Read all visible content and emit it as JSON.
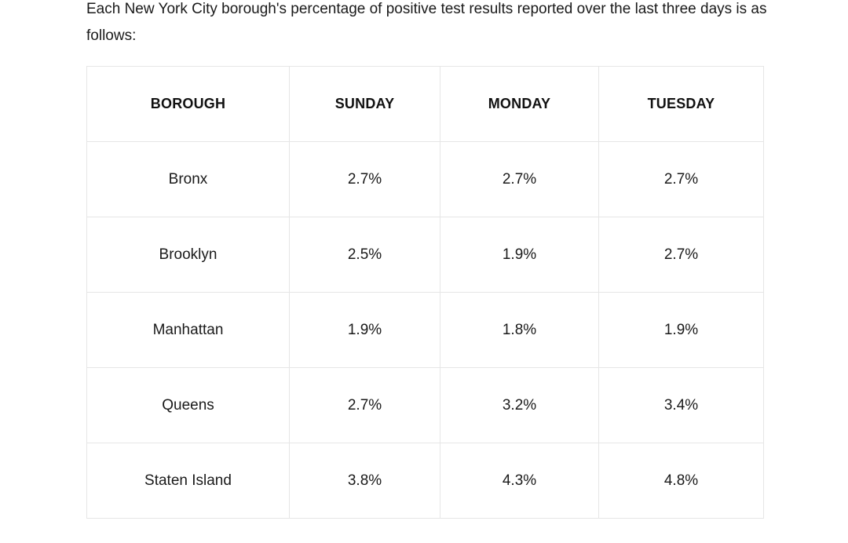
{
  "intro_text": "Each New York City borough's percentage of positive test results reported over the last three days is as follows:",
  "table": {
    "headers": [
      "BOROUGH",
      "SUNDAY",
      "MONDAY",
      "TUESDAY"
    ],
    "rows": [
      [
        "Bronx",
        "2.7%",
        "2.7%",
        "2.7%"
      ],
      [
        "Brooklyn",
        "2.5%",
        "1.9%",
        "2.7%"
      ],
      [
        "Manhattan",
        "1.9%",
        "1.8%",
        "1.9%"
      ],
      [
        "Queens",
        "2.7%",
        "3.2%",
        "3.4%"
      ],
      [
        "Staten Island",
        "3.8%",
        "4.3%",
        "4.8%"
      ]
    ]
  },
  "colors": {
    "text": "#1a1a1a",
    "border": "#e6e6e6",
    "background": "#ffffff"
  }
}
